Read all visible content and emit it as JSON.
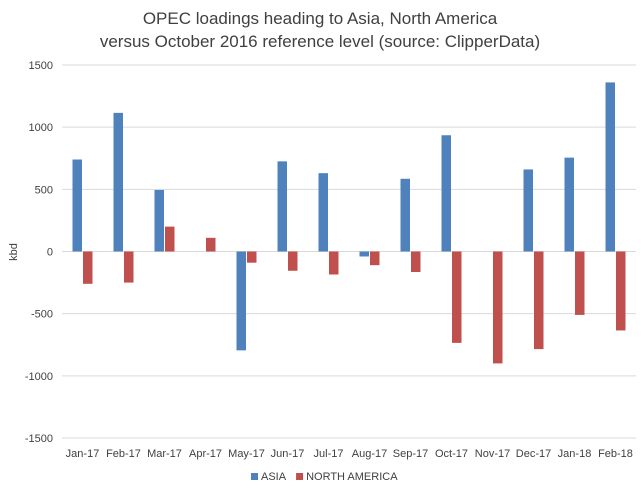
{
  "chart_data": {
    "type": "bar",
    "title_lines": [
      "OPEC loadings heading to Asia, North America",
      "versus October 2016 reference level (source: ClipperData)"
    ],
    "ylabel": "kbd",
    "xlabel": "",
    "ylim": [
      -1500,
      1500
    ],
    "yticks": [
      "1500",
      "1000",
      "500",
      "0",
      "-500",
      "-1000",
      "-1500"
    ],
    "categories": [
      "Jan-17",
      "Feb-17",
      "Mar-17",
      "Apr-17",
      "May-17",
      "Jun-17",
      "Jul-17",
      "Aug-17",
      "Sep-17",
      "Oct-17",
      "Nov-17",
      "Dec-17",
      "Jan-18",
      "Feb-18"
    ],
    "series": [
      {
        "name": "ASIA",
        "color": "#4f81bd",
        "values": [
          740,
          1115,
          495,
          0,
          -795,
          725,
          630,
          -40,
          585,
          935,
          0,
          660,
          755,
          1360
        ]
      },
      {
        "name": "NORTH AMERICA",
        "color": "#c0504d",
        "values": [
          -260,
          -250,
          200,
          110,
          -90,
          -155,
          -185,
          -110,
          -165,
          -735,
          -900,
          -785,
          -510,
          -635
        ]
      }
    ],
    "grid": true,
    "legend_position": "bottom"
  }
}
